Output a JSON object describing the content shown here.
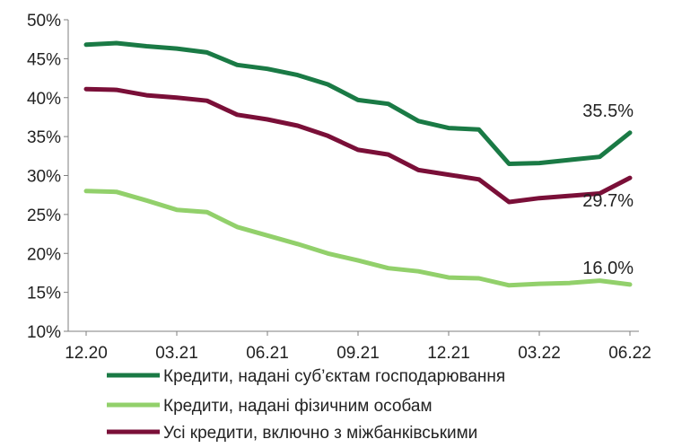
{
  "chart_data": {
    "type": "line",
    "x": [
      "12.20",
      "01.21",
      "02.21",
      "03.21",
      "04.21",
      "05.21",
      "06.21",
      "07.21",
      "08.21",
      "09.21",
      "10.21",
      "11.21",
      "12.21",
      "01.22",
      "02.22",
      "03.22",
      "04.22",
      "05.22",
      "06.22"
    ],
    "x_tick_labels": [
      "12.20",
      "03.21",
      "06.21",
      "09.21",
      "12.21",
      "03.22",
      "06.22"
    ],
    "y_tick_labels": [
      "10%",
      "15%",
      "20%",
      "25%",
      "30%",
      "35%",
      "40%",
      "45%",
      "50%"
    ],
    "ylim": [
      10,
      50
    ],
    "grid": false,
    "legend_position": "bottom",
    "series": [
      {
        "name": "Кредити, надані суб’єктам господарювання",
        "color": "#1a7a45",
        "values": [
          46.8,
          47.0,
          46.6,
          46.3,
          45.8,
          44.2,
          43.7,
          42.9,
          41.7,
          39.7,
          39.2,
          37.0,
          36.1,
          35.9,
          31.5,
          31.6,
          32.0,
          32.4,
          35.5
        ]
      },
      {
        "name": "Кредити, надані фізичним особам",
        "color": "#92d06b",
        "values": [
          28.0,
          27.9,
          26.8,
          25.6,
          25.3,
          23.4,
          22.3,
          21.2,
          20.0,
          19.1,
          18.1,
          17.7,
          16.9,
          16.8,
          15.9,
          16.1,
          16.2,
          16.5,
          16.0
        ]
      },
      {
        "name": "Усі кредити, включно з міжбанківськими",
        "color": "#7a0f38",
        "values": [
          41.1,
          41.0,
          40.3,
          40.0,
          39.6,
          37.8,
          37.2,
          36.4,
          35.1,
          33.3,
          32.7,
          30.7,
          30.1,
          29.5,
          26.6,
          27.1,
          27.4,
          27.7,
          29.7
        ]
      }
    ],
    "annotations": [
      {
        "text": "35.5%",
        "series": 0
      },
      {
        "text": "16.0%",
        "series": 1
      },
      {
        "text": "29.7%",
        "series": 2
      }
    ]
  }
}
